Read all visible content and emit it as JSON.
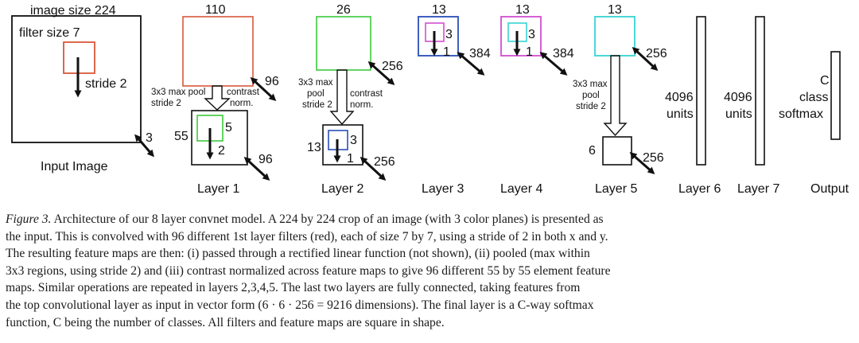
{
  "labels": {
    "image_size": "image size 224",
    "filter_size": "filter size 7",
    "stride": "stride 2",
    "input_depth": "3",
    "input_image": "Input Image",
    "l1_size": "110",
    "l1_pool": [
      "3x3 max pool",
      "stride 2"
    ],
    "l1_norm": [
      "contrast",
      "norm."
    ],
    "l1_depth": "96",
    "l1_map_size": "55",
    "l1_filter_size": "5",
    "l1_stride": "2",
    "l1_bottom_depth": "96",
    "layer1": "Layer 1",
    "l2_size": "26",
    "l2_pool": [
      "3x3 max",
      "pool",
      "stride 2"
    ],
    "l2_norm": [
      "contrast",
      "norm."
    ],
    "l2_depth": "256",
    "l2_map_size": "13",
    "l2_filter_size": "3",
    "l2_stride": "1",
    "l2_bottom_depth": "256",
    "layer2": "Layer 2",
    "l3_size": "13",
    "l3_filter_size": "3",
    "l3_stride": "1",
    "l3_depth": "384",
    "layer3": "Layer 3",
    "l4_size": "13",
    "l4_filter_size": "3",
    "l4_stride": "1",
    "l4_depth": "384",
    "layer4": "Layer 4",
    "l5_size": "13",
    "l5_depth": "256",
    "l5_pool": [
      "3x3 max",
      "pool",
      "stride 2"
    ],
    "l5_map_size": "6",
    "l5_bottom_depth": "256",
    "layer5": "Layer 5",
    "l6_units": [
      "4096",
      "units"
    ],
    "layer6": "Layer 6",
    "l7_units": [
      "4096",
      "units"
    ],
    "layer7": "Layer 7",
    "out_text": [
      "C",
      "class",
      "softmax"
    ],
    "output": "Output"
  },
  "colors": {
    "layer1_filter": "#d9583a",
    "layer2_filter": "#3cc93c",
    "layer3_filter": "#2a4fb8",
    "layer4_filter": "#d24fd2",
    "layer5_filter": "#37d4d4",
    "line": "#111111"
  },
  "caption": {
    "figure_label": "Figure 3.",
    "lines": [
      " Architecture of our 8 layer convnet model.  A 224 by 224 crop of an image (with 3 color planes) is presented as",
      "the input.  This is convolved with 96 different 1st layer filters (red), each of size 7 by 7, using a stride of 2 in both x and y.",
      "The resulting feature maps are then: (i) passed through a rectified linear function (not shown), (ii) pooled (max within",
      "3x3 regions, using stride 2) and (iii) contrast normalized across feature maps to give 96 different 55 by 55 element feature",
      "maps.  Similar operations are repeated in layers 2,3,4,5.  The last two layers are fully connected, taking features from",
      "the top convolutional layer as input in vector form (6 · 6 · 256 = 9216 dimensions).  The final layer is a C-way softmax",
      "function, C being the number of classes.  All filters and feature maps are square in shape."
    ]
  }
}
